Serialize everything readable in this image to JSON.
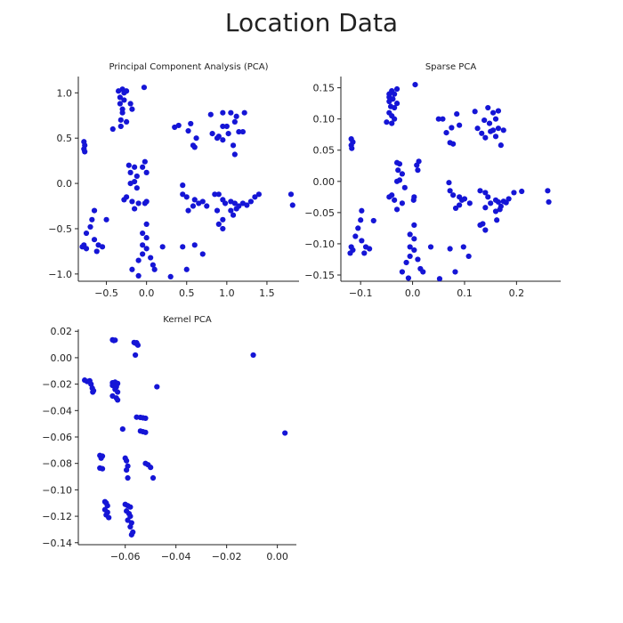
{
  "figure": {
    "title": "Location Data",
    "point_color": "#1515d6"
  },
  "chart_data": [
    {
      "type": "scatter",
      "title": "Principal Component Analysis (PCA)",
      "xlabel": "",
      "ylabel": "",
      "xlim": [
        -0.85,
        1.9
      ],
      "ylim": [
        -1.08,
        1.18
      ],
      "xticks": [
        -0.5,
        0.0,
        0.5,
        1.0,
        1.5
      ],
      "yticks": [
        -1.0,
        -0.5,
        0.0,
        0.5,
        1.0
      ],
      "xtick_labels": [
        "−0.5",
        "0.0",
        "0.5",
        "1.0",
        "1.5"
      ],
      "ytick_labels": [
        "−1.0",
        "−0.5",
        "0.0",
        "0.5",
        "1.0"
      ],
      "grid": false,
      "points": [
        [
          -0.35,
          1.02
        ],
        [
          -0.3,
          1.04
        ],
        [
          -0.25,
          1.02
        ],
        [
          -0.33,
          0.95
        ],
        [
          -0.28,
          0.92
        ],
        [
          -0.33,
          0.88
        ],
        [
          -0.2,
          0.88
        ],
        [
          -0.3,
          0.82
        ],
        [
          -0.18,
          0.82
        ],
        [
          -0.3,
          0.78
        ],
        [
          -0.32,
          0.7
        ],
        [
          -0.25,
          0.68
        ],
        [
          -0.42,
          0.6
        ],
        [
          -0.32,
          0.63
        ],
        [
          -0.03,
          1.06
        ],
        [
          -0.28,
          1.0
        ],
        [
          -0.78,
          0.46
        ],
        [
          -0.77,
          0.42
        ],
        [
          -0.78,
          0.38
        ],
        [
          -0.77,
          0.35
        ],
        [
          0.35,
          0.62
        ],
        [
          0.4,
          0.64
        ],
        [
          0.55,
          0.66
        ],
        [
          0.52,
          0.58
        ],
        [
          0.62,
          0.5
        ],
        [
          0.6,
          0.4
        ],
        [
          0.58,
          0.42
        ],
        [
          0.8,
          0.76
        ],
        [
          0.95,
          0.78
        ],
        [
          1.05,
          0.78
        ],
        [
          1.12,
          0.74
        ],
        [
          1.22,
          0.78
        ],
        [
          1.1,
          0.68
        ],
        [
          0.95,
          0.63
        ],
        [
          1.0,
          0.63
        ],
        [
          0.82,
          0.55
        ],
        [
          0.9,
          0.52
        ],
        [
          1.15,
          0.57
        ],
        [
          1.02,
          0.55
        ],
        [
          1.2,
          0.57
        ],
        [
          0.95,
          0.48
        ],
        [
          0.88,
          0.5
        ],
        [
          1.08,
          0.42
        ],
        [
          1.1,
          0.32
        ],
        [
          -0.22,
          0.2
        ],
        [
          -0.15,
          0.18
        ],
        [
          -0.02,
          0.24
        ],
        [
          -0.05,
          0.18
        ],
        [
          0.0,
          0.12
        ],
        [
          -0.2,
          0.12
        ],
        [
          -0.12,
          0.08
        ],
        [
          -0.15,
          0.02
        ],
        [
          -0.2,
          0.0
        ],
        [
          -0.12,
          -0.05
        ],
        [
          -0.25,
          -0.15
        ],
        [
          -0.18,
          -0.2
        ],
        [
          -0.1,
          -0.22
        ],
        [
          -0.28,
          -0.18
        ],
        [
          -0.15,
          -0.28
        ],
        [
          -0.02,
          -0.22
        ],
        [
          0.0,
          -0.2
        ],
        [
          0.45,
          -0.02
        ],
        [
          0.45,
          -0.12
        ],
        [
          0.5,
          -0.15
        ],
        [
          0.6,
          -0.18
        ],
        [
          0.7,
          -0.2
        ],
        [
          0.58,
          -0.25
        ],
        [
          0.52,
          -0.3
        ],
        [
          0.65,
          -0.22
        ],
        [
          0.85,
          -0.12
        ],
        [
          0.9,
          -0.12
        ],
        [
          0.95,
          -0.18
        ],
        [
          0.98,
          -0.22
        ],
        [
          1.05,
          -0.2
        ],
        [
          1.1,
          -0.22
        ],
        [
          1.12,
          -0.28
        ],
        [
          1.2,
          -0.22
        ],
        [
          1.25,
          -0.24
        ],
        [
          1.3,
          -0.2
        ],
        [
          1.35,
          -0.15
        ],
        [
          1.4,
          -0.12
        ],
        [
          1.05,
          -0.3
        ],
        [
          1.15,
          -0.25
        ],
        [
          0.88,
          -0.3
        ],
        [
          1.8,
          -0.12
        ],
        [
          1.82,
          -0.24
        ],
        [
          1.08,
          -0.35
        ],
        [
          0.75,
          -0.25
        ],
        [
          0.95,
          -0.4
        ],
        [
          -0.65,
          -0.3
        ],
        [
          -0.68,
          -0.4
        ],
        [
          -0.7,
          -0.48
        ],
        [
          -0.75,
          -0.55
        ],
        [
          -0.5,
          -0.4
        ],
        [
          -0.78,
          -0.68
        ],
        [
          -0.75,
          -0.72
        ],
        [
          -0.8,
          -0.7
        ],
        [
          -0.65,
          -0.62
        ],
        [
          -0.6,
          -0.68
        ],
        [
          -0.62,
          -0.75
        ],
        [
          -0.55,
          -0.7
        ],
        [
          0.0,
          -0.45
        ],
        [
          -0.05,
          -0.55
        ],
        [
          0.0,
          -0.6
        ],
        [
          -0.05,
          -0.68
        ],
        [
          0.0,
          -0.72
        ],
        [
          0.2,
          -0.7
        ],
        [
          -0.1,
          -0.85
        ],
        [
          -0.05,
          -0.78
        ],
        [
          0.05,
          -0.82
        ],
        [
          0.08,
          -0.9
        ],
        [
          -0.18,
          -0.95
        ],
        [
          0.1,
          -0.95
        ],
        [
          -0.1,
          -1.02
        ],
        [
          0.3,
          -1.03
        ],
        [
          0.5,
          -0.95
        ],
        [
          0.45,
          -0.7
        ],
        [
          0.6,
          -0.68
        ],
        [
          0.7,
          -0.78
        ],
        [
          0.9,
          -0.45
        ],
        [
          0.95,
          -0.5
        ]
      ]
    },
    {
      "type": "scatter",
      "title": "Sparse PCA",
      "xlabel": "",
      "ylabel": "",
      "xlim": [
        -0.138,
        0.285
      ],
      "ylim": [
        -0.16,
        0.168
      ],
      "xticks": [
        -0.1,
        0.0,
        0.1,
        0.2
      ],
      "yticks": [
        -0.15,
        -0.1,
        -0.05,
        0.0,
        0.05,
        0.1,
        0.15
      ],
      "xtick_labels": [
        "−0.1",
        "0.0",
        "0.1",
        "0.2"
      ],
      "ytick_labels": [
        "−0.15",
        "−0.10",
        "−0.05",
        "0.00",
        "0.05",
        "0.10",
        "0.15"
      ],
      "grid": false,
      "points": [
        [
          -0.045,
          0.14
        ],
        [
          -0.04,
          0.145
        ],
        [
          -0.035,
          0.14
        ],
        [
          -0.045,
          0.135
        ],
        [
          -0.038,
          0.132
        ],
        [
          -0.045,
          0.128
        ],
        [
          -0.03,
          0.125
        ],
        [
          -0.042,
          0.12
        ],
        [
          -0.035,
          0.118
        ],
        [
          -0.045,
          0.11
        ],
        [
          -0.04,
          0.105
        ],
        [
          -0.035,
          0.1
        ],
        [
          -0.05,
          0.095
        ],
        [
          -0.04,
          0.093
        ],
        [
          0.005,
          0.155
        ],
        [
          -0.03,
          0.148
        ],
        [
          -0.118,
          0.068
        ],
        [
          -0.115,
          0.063
        ],
        [
          -0.118,
          0.058
        ],
        [
          -0.117,
          0.053
        ],
        [
          0.05,
          0.1
        ],
        [
          0.058,
          0.1
        ],
        [
          0.065,
          0.078
        ],
        [
          0.085,
          0.108
        ],
        [
          0.09,
          0.09
        ],
        [
          0.075,
          0.086
        ],
        [
          0.072,
          0.062
        ],
        [
          0.078,
          0.06
        ],
        [
          0.12,
          0.112
        ],
        [
          0.145,
          0.118
        ],
        [
          0.155,
          0.11
        ],
        [
          0.165,
          0.113
        ],
        [
          0.138,
          0.098
        ],
        [
          0.148,
          0.093
        ],
        [
          0.16,
          0.1
        ],
        [
          0.125,
          0.085
        ],
        [
          0.133,
          0.077
        ],
        [
          0.155,
          0.082
        ],
        [
          0.165,
          0.085
        ],
        [
          0.15,
          0.08
        ],
        [
          0.14,
          0.07
        ],
        [
          0.175,
          0.082
        ],
        [
          0.16,
          0.072
        ],
        [
          0.17,
          0.058
        ],
        [
          -0.03,
          0.03
        ],
        [
          -0.025,
          0.028
        ],
        [
          0.012,
          0.032
        ],
        [
          0.008,
          0.026
        ],
        [
          0.01,
          0.018
        ],
        [
          -0.028,
          0.018
        ],
        [
          -0.02,
          0.012
        ],
        [
          -0.025,
          0.002
        ],
        [
          -0.03,
          0.0
        ],
        [
          -0.015,
          -0.01
        ],
        [
          -0.045,
          -0.025
        ],
        [
          -0.035,
          -0.03
        ],
        [
          -0.02,
          -0.035
        ],
        [
          -0.04,
          -0.022
        ],
        [
          -0.03,
          -0.045
        ],
        [
          0.002,
          -0.03
        ],
        [
          0.003,
          -0.025
        ],
        [
          0.07,
          -0.002
        ],
        [
          0.072,
          -0.015
        ],
        [
          0.078,
          -0.022
        ],
        [
          0.09,
          -0.025
        ],
        [
          0.1,
          -0.028
        ],
        [
          0.09,
          -0.038
        ],
        [
          0.083,
          -0.043
        ],
        [
          0.095,
          -0.03
        ],
        [
          0.13,
          -0.015
        ],
        [
          0.14,
          -0.018
        ],
        [
          0.145,
          -0.025
        ],
        [
          0.15,
          -0.035
        ],
        [
          0.16,
          -0.03
        ],
        [
          0.165,
          -0.033
        ],
        [
          0.168,
          -0.045
        ],
        [
          0.175,
          -0.032
        ],
        [
          0.18,
          -0.034
        ],
        [
          0.185,
          -0.028
        ],
        [
          0.195,
          -0.018
        ],
        [
          0.21,
          -0.016
        ],
        [
          0.16,
          -0.048
        ],
        [
          0.17,
          -0.04
        ],
        [
          0.14,
          -0.042
        ],
        [
          0.26,
          -0.015
        ],
        [
          0.262,
          -0.033
        ],
        [
          0.162,
          -0.062
        ],
        [
          0.11,
          -0.035
        ],
        [
          0.135,
          -0.068
        ],
        [
          -0.098,
          -0.047
        ],
        [
          -0.1,
          -0.062
        ],
        [
          -0.105,
          -0.075
        ],
        [
          -0.11,
          -0.088
        ],
        [
          -0.075,
          -0.063
        ],
        [
          -0.118,
          -0.105
        ],
        [
          -0.115,
          -0.11
        ],
        [
          -0.12,
          -0.115
        ],
        [
          -0.098,
          -0.095
        ],
        [
          -0.09,
          -0.105
        ],
        [
          -0.093,
          -0.115
        ],
        [
          -0.083,
          -0.108
        ],
        [
          0.003,
          -0.07
        ],
        [
          -0.005,
          -0.085
        ],
        [
          0.003,
          -0.092
        ],
        [
          -0.005,
          -0.105
        ],
        [
          0.003,
          -0.11
        ],
        [
          0.035,
          -0.105
        ],
        [
          -0.012,
          -0.13
        ],
        [
          -0.005,
          -0.12
        ],
        [
          0.01,
          -0.125
        ],
        [
          0.015,
          -0.14
        ],
        [
          -0.02,
          -0.145
        ],
        [
          0.02,
          -0.145
        ],
        [
          -0.008,
          -0.155
        ],
        [
          0.052,
          -0.156
        ],
        [
          0.082,
          -0.145
        ],
        [
          0.072,
          -0.108
        ],
        [
          0.098,
          -0.105
        ],
        [
          0.108,
          -0.12
        ],
        [
          0.13,
          -0.07
        ],
        [
          0.14,
          -0.078
        ]
      ]
    },
    {
      "type": "scatter",
      "title": "Kernel PCA",
      "xlabel": "",
      "ylabel": "",
      "xlim": [
        -0.0785,
        0.0075
      ],
      "ylim": [
        -0.1415,
        0.0215
      ],
      "xticks": [
        -0.06,
        -0.04,
        -0.02,
        0.0
      ],
      "yticks": [
        0.02,
        0.0,
        -0.02,
        -0.04,
        -0.06,
        -0.08,
        -0.1,
        -0.12,
        -0.14
      ],
      "xtick_labels": [
        "−0.06",
        "−0.04",
        "−0.02",
        "0.00"
      ],
      "ytick_labels": [
        "0.02",
        "0.00",
        "−0.02",
        "−0.04",
        "−0.06",
        "−0.08",
        "−0.10",
        "−0.12",
        "−0.14"
      ],
      "grid": false,
      "points": [
        [
          -0.065,
          0.0135
        ],
        [
          -0.0645,
          0.013
        ],
        [
          -0.064,
          0.0133
        ],
        [
          -0.0565,
          0.0115
        ],
        [
          -0.056,
          0.011
        ],
        [
          -0.0555,
          0.0113
        ],
        [
          -0.055,
          0.0095
        ],
        [
          -0.056,
          0.002
        ],
        [
          -0.076,
          -0.017
        ],
        [
          -0.075,
          -0.018
        ],
        [
          -0.074,
          -0.0175
        ],
        [
          -0.0735,
          -0.02
        ],
        [
          -0.073,
          -0.023
        ],
        [
          -0.0728,
          -0.026
        ],
        [
          -0.0725,
          -0.025
        ],
        [
          -0.065,
          -0.019
        ],
        [
          -0.064,
          -0.0185
        ],
        [
          -0.063,
          -0.0195
        ],
        [
          -0.065,
          -0.021
        ],
        [
          -0.0635,
          -0.022
        ],
        [
          -0.064,
          -0.024
        ],
        [
          -0.063,
          -0.026
        ],
        [
          -0.065,
          -0.029
        ],
        [
          -0.0635,
          -0.0305
        ],
        [
          -0.063,
          -0.032
        ],
        [
          -0.061,
          -0.054
        ],
        [
          -0.0475,
          -0.022
        ],
        [
          -0.0555,
          -0.045
        ],
        [
          -0.054,
          -0.0452
        ],
        [
          -0.053,
          -0.0455
        ],
        [
          -0.052,
          -0.0458
        ],
        [
          -0.054,
          -0.0555
        ],
        [
          -0.053,
          -0.056
        ],
        [
          -0.052,
          -0.0565
        ],
        [
          -0.07,
          -0.074
        ],
        [
          -0.0695,
          -0.076
        ],
        [
          -0.069,
          -0.0745
        ],
        [
          -0.07,
          -0.0835
        ],
        [
          -0.069,
          -0.084
        ],
        [
          -0.06,
          -0.076
        ],
        [
          -0.0595,
          -0.078
        ],
        [
          -0.059,
          -0.082
        ],
        [
          -0.0595,
          -0.085
        ],
        [
          -0.059,
          -0.091
        ],
        [
          -0.052,
          -0.08
        ],
        [
          -0.051,
          -0.081
        ],
        [
          -0.05,
          -0.083
        ],
        [
          -0.049,
          -0.091
        ],
        [
          -0.068,
          -0.109
        ],
        [
          -0.0675,
          -0.11
        ],
        [
          -0.067,
          -0.112
        ],
        [
          -0.068,
          -0.115
        ],
        [
          -0.067,
          -0.117
        ],
        [
          -0.0675,
          -0.119
        ],
        [
          -0.0665,
          -0.121
        ],
        [
          -0.06,
          -0.111
        ],
        [
          -0.059,
          -0.112
        ],
        [
          -0.058,
          -0.113
        ],
        [
          -0.0595,
          -0.116
        ],
        [
          -0.0585,
          -0.118
        ],
        [
          -0.058,
          -0.12
        ],
        [
          -0.059,
          -0.123
        ],
        [
          -0.0575,
          -0.125
        ],
        [
          -0.058,
          -0.128
        ],
        [
          -0.057,
          -0.132
        ],
        [
          -0.0575,
          -0.134
        ],
        [
          -0.0095,
          0.002
        ],
        [
          0.003,
          -0.057
        ]
      ]
    }
  ]
}
